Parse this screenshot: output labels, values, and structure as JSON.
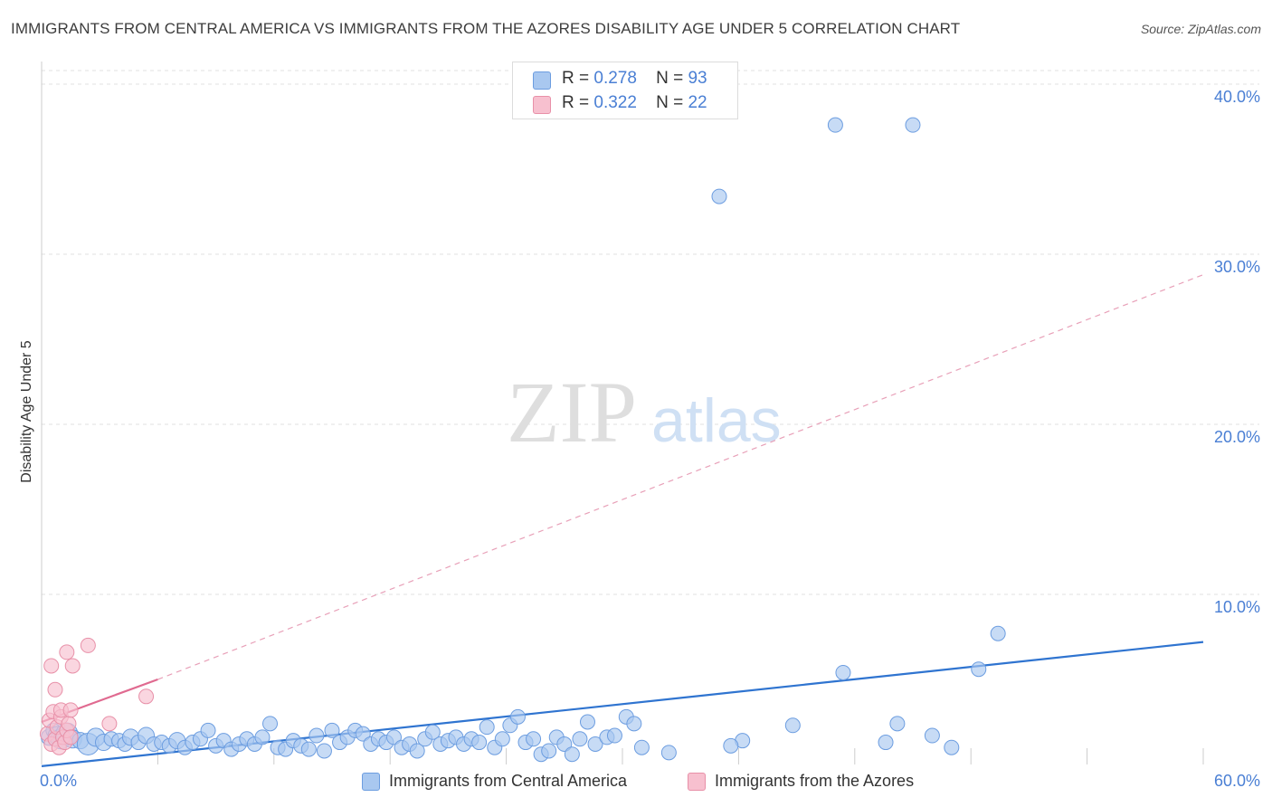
{
  "title": "IMMIGRANTS FROM CENTRAL AMERICA VS IMMIGRANTS FROM THE AZORES DISABILITY AGE UNDER 5 CORRELATION CHART",
  "source": "Source: ZipAtlas.com",
  "watermark": {
    "zip": "ZIP",
    "atlas": "atlas"
  },
  "legend": {
    "series1": {
      "r_label": "R =",
      "r_value": "0.278",
      "n_label": "N =",
      "n_value": "93"
    },
    "series2": {
      "r_label": "R =",
      "r_value": "0.322",
      "n_label": "N =",
      "n_value": "22"
    }
  },
  "colors": {
    "blue_fill": "#a9c8f0",
    "blue_stroke": "#6c9de0",
    "blue_line": "#2f74d0",
    "pink_fill": "#f7c0cf",
    "pink_stroke": "#e890a8",
    "pink_line": "#e06a90",
    "axis_text": "#4a7fd4",
    "grid": "#e2e2e2"
  },
  "chart_data": {
    "type": "scatter",
    "xlabel": "",
    "ylabel": "Disability Age Under 5",
    "xlim": [
      0,
      60
    ],
    "ylim": [
      0,
      40.8
    ],
    "x_tick_labels": [
      "0.0%",
      "60.0%"
    ],
    "y_ticks": [
      10,
      20,
      30,
      40
    ],
    "y_tick_labels": [
      "10.0%",
      "20.0%",
      "30.0%",
      "40.0%"
    ],
    "series": [
      {
        "name": "Immigrants from Central America",
        "color": "blue",
        "trend": {
          "x": [
            0,
            60
          ],
          "y": [
            -0.1,
            7.2
          ],
          "style": "solid"
        },
        "points": [
          [
            0.4,
            1.6,
            9
          ],
          [
            0.6,
            2.0,
            8
          ],
          [
            0.8,
            1.7,
            10
          ],
          [
            1.0,
            1.5,
            11
          ],
          [
            1.3,
            1.8,
            12
          ],
          [
            1.6,
            1.5,
            10
          ],
          [
            2.0,
            1.4,
            9
          ],
          [
            2.4,
            1.2,
            12
          ],
          [
            2.8,
            1.6,
            10
          ],
          [
            3.2,
            1.3,
            9
          ],
          [
            3.6,
            1.5,
            8
          ],
          [
            4.0,
            1.4,
            8
          ],
          [
            4.3,
            1.2,
            8
          ],
          [
            4.6,
            1.6,
            9
          ],
          [
            5.0,
            1.3,
            8
          ],
          [
            5.4,
            1.7,
            9
          ],
          [
            5.8,
            1.2,
            8
          ],
          [
            6.2,
            1.3,
            8
          ],
          [
            6.6,
            1.1,
            8
          ],
          [
            7.0,
            1.4,
            9
          ],
          [
            7.4,
            1.0,
            8
          ],
          [
            7.8,
            1.3,
            8
          ],
          [
            8.2,
            1.5,
            8
          ],
          [
            8.6,
            2.0,
            8
          ],
          [
            9.0,
            1.1,
            8
          ],
          [
            9.4,
            1.4,
            8
          ],
          [
            9.8,
            0.9,
            8
          ],
          [
            10.2,
            1.2,
            8
          ],
          [
            10.6,
            1.5,
            8
          ],
          [
            11.0,
            1.2,
            8
          ],
          [
            11.4,
            1.6,
            8
          ],
          [
            11.8,
            2.4,
            8
          ],
          [
            12.2,
            1.0,
            8
          ],
          [
            12.6,
            0.9,
            8
          ],
          [
            13.0,
            1.4,
            8
          ],
          [
            13.4,
            1.1,
            8
          ],
          [
            13.8,
            0.9,
            8
          ],
          [
            14.2,
            1.7,
            8
          ],
          [
            14.6,
            0.8,
            8
          ],
          [
            15.0,
            2.0,
            8
          ],
          [
            15.4,
            1.3,
            8
          ],
          [
            15.8,
            1.6,
            8
          ],
          [
            16.2,
            2.0,
            8
          ],
          [
            16.6,
            1.8,
            8
          ],
          [
            17.0,
            1.2,
            8
          ],
          [
            17.4,
            1.5,
            8
          ],
          [
            17.8,
            1.3,
            8
          ],
          [
            18.2,
            1.6,
            8
          ],
          [
            18.6,
            1.0,
            8
          ],
          [
            19.0,
            1.2,
            8
          ],
          [
            19.4,
            0.8,
            8
          ],
          [
            19.8,
            1.5,
            8
          ],
          [
            20.2,
            1.9,
            8
          ],
          [
            20.6,
            1.2,
            8
          ],
          [
            21.0,
            1.4,
            8
          ],
          [
            21.4,
            1.6,
            8
          ],
          [
            21.8,
            1.2,
            8
          ],
          [
            22.2,
            1.5,
            8
          ],
          [
            22.6,
            1.3,
            8
          ],
          [
            23.0,
            2.2,
            8
          ],
          [
            23.4,
            1.0,
            8
          ],
          [
            23.8,
            1.5,
            8
          ],
          [
            24.2,
            2.3,
            8
          ],
          [
            24.6,
            2.8,
            8
          ],
          [
            25.0,
            1.3,
            8
          ],
          [
            25.4,
            1.5,
            8
          ],
          [
            25.8,
            0.6,
            8
          ],
          [
            26.2,
            0.8,
            8
          ],
          [
            26.6,
            1.6,
            8
          ],
          [
            27.0,
            1.2,
            8
          ],
          [
            27.4,
            0.6,
            8
          ],
          [
            27.8,
            1.5,
            8
          ],
          [
            28.2,
            2.5,
            8
          ],
          [
            28.6,
            1.2,
            8
          ],
          [
            29.2,
            1.6,
            8
          ],
          [
            29.6,
            1.7,
            8
          ],
          [
            30.2,
            2.8,
            8
          ],
          [
            30.6,
            2.4,
            8
          ],
          [
            31.0,
            1.0,
            8
          ],
          [
            32.4,
            0.7,
            8
          ],
          [
            36.2,
            1.4,
            8
          ],
          [
            41.4,
            5.4,
            8
          ],
          [
            48.4,
            5.6,
            8
          ],
          [
            49.4,
            7.7,
            8
          ],
          [
            35.0,
            33.4,
            8
          ],
          [
            41.0,
            37.6,
            8
          ],
          [
            45.0,
            37.6,
            8
          ],
          [
            35.6,
            1.1,
            8
          ],
          [
            38.8,
            2.3,
            8
          ],
          [
            43.6,
            1.3,
            8
          ],
          [
            44.2,
            2.4,
            8
          ],
          [
            46.0,
            1.7,
            8
          ],
          [
            47.0,
            1.0,
            8
          ]
        ]
      },
      {
        "name": "Immigrants from the Azores",
        "color": "pink",
        "trend": {
          "x": [
            0,
            6
          ],
          "y": [
            2.5,
            5.0
          ],
          "style": "solid",
          "extension": {
            "x": [
              6,
              60
            ],
            "y": [
              5.0,
              28.8
            ],
            "style": "dashed"
          }
        },
        "points": [
          [
            0.3,
            1.8,
            8
          ],
          [
            0.4,
            2.6,
            8
          ],
          [
            0.5,
            1.2,
            8
          ],
          [
            0.6,
            3.1,
            8
          ],
          [
            0.7,
            1.5,
            8
          ],
          [
            0.8,
            2.2,
            8
          ],
          [
            0.9,
            1.0,
            8
          ],
          [
            1.0,
            2.8,
            8
          ],
          [
            1.1,
            1.6,
            8
          ],
          [
            1.2,
            1.3,
            8
          ],
          [
            1.3,
            2.0,
            8
          ],
          [
            1.4,
            2.4,
            8
          ],
          [
            1.5,
            1.6,
            8
          ],
          [
            0.5,
            5.8,
            8
          ],
          [
            0.7,
            4.4,
            8
          ],
          [
            1.3,
            6.6,
            8
          ],
          [
            1.6,
            5.8,
            8
          ],
          [
            2.4,
            7.0,
            8
          ],
          [
            1.0,
            3.2,
            8
          ],
          [
            1.5,
            3.2,
            8
          ],
          [
            3.5,
            2.4,
            8
          ],
          [
            5.4,
            4.0,
            8
          ]
        ]
      }
    ]
  },
  "bottom_legend": {
    "item1": "Immigrants from Central America",
    "item2": "Immigrants from the Azores"
  }
}
